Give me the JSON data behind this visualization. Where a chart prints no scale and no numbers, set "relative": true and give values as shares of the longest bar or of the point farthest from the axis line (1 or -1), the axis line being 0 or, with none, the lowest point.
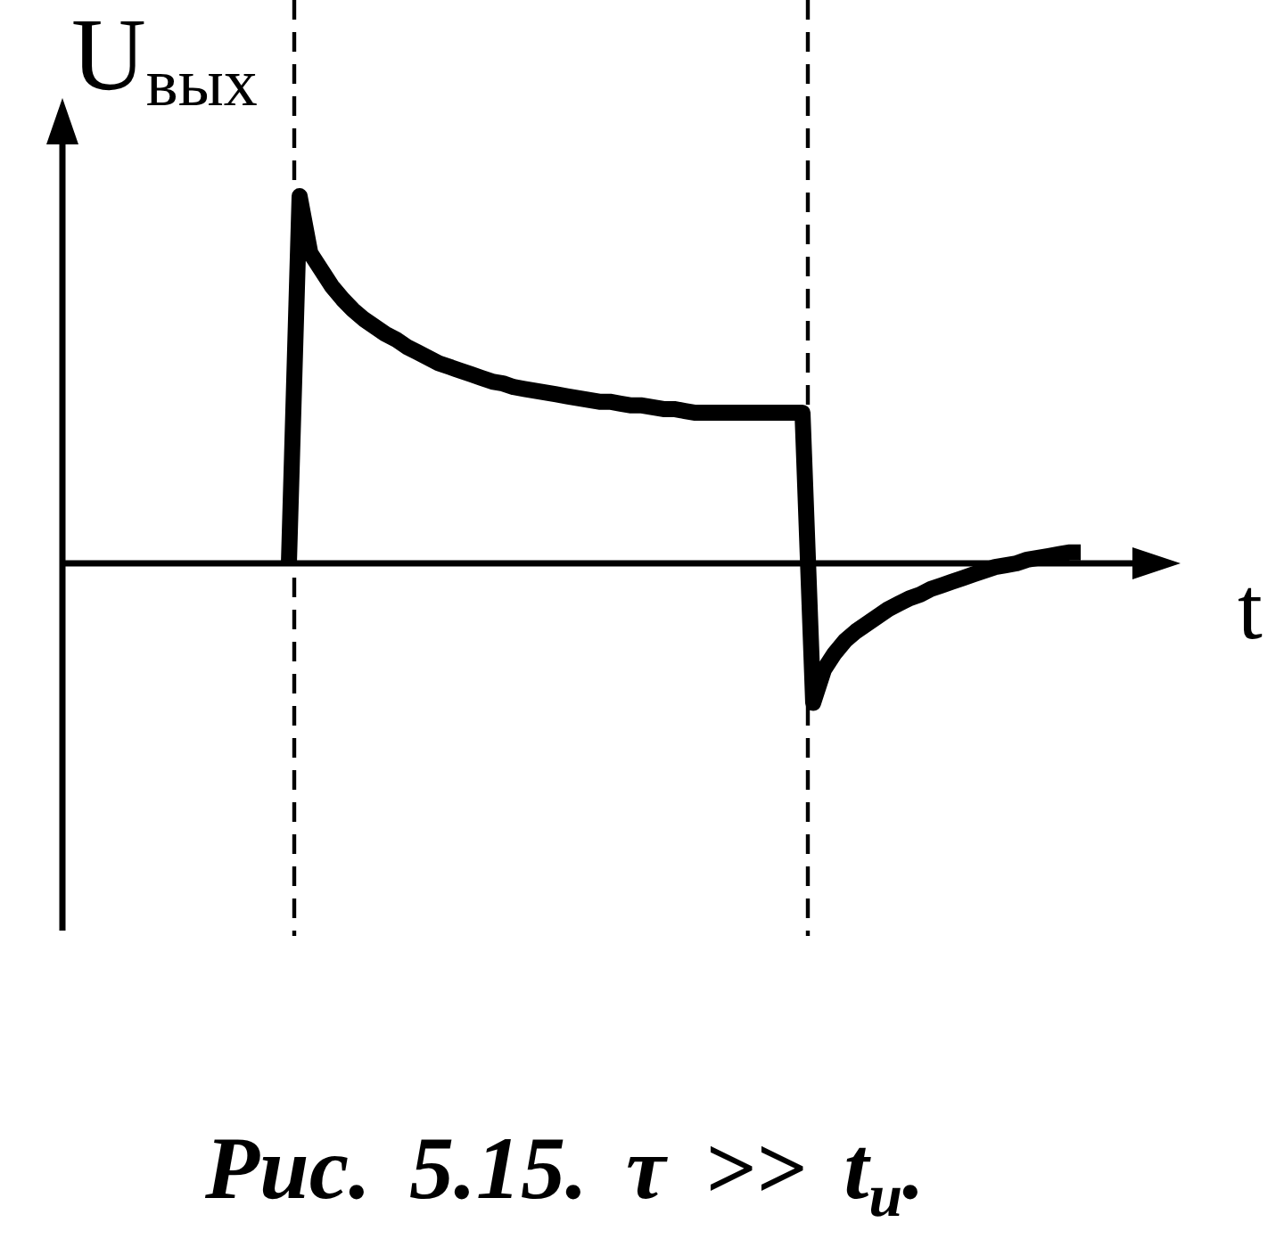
{
  "chart_data": {
    "type": "line",
    "relative": true,
    "xlabel": "t",
    "ylabel": "U$_{вых}$",
    "annotations": [
      "Рис. 5.15. τ >> t$_{и}$."
    ],
    "categories": [
      null,
      null,
      null,
      null,
      null,
      null,
      null,
      null,
      null,
      null,
      null,
      null,
      null,
      null,
      null,
      null,
      null,
      null,
      null,
      null,
      null,
      null,
      null,
      null,
      null,
      null,
      null,
      null,
      null,
      null,
      null,
      null,
      null,
      null,
      null,
      null,
      null,
      null,
      null,
      null,
      null,
      null,
      null,
      null,
      null,
      null,
      null,
      null,
      null,
      null,
      null,
      null,
      null,
      null,
      null,
      null,
      null,
      null,
      null,
      null,
      null,
      null,
      null,
      null,
      null,
      null,
      null,
      null,
      null,
      null,
      null,
      null,
      null,
      null,
      null
    ],
    "series": [
      {
        "color": "#000000",
        "values": [
          0,
          1,
          0.845,
          0.8,
          0.755,
          0.72,
          0.69,
          0.665,
          0.645,
          0.625,
          0.61,
          0.59,
          0.575,
          0.56,
          0.545,
          0.535,
          0.525,
          0.515,
          0.505,
          0.495,
          0.49,
          0.48,
          0.475,
          0.47,
          0.465,
          0.46,
          0.455,
          0.45,
          0.445,
          0.44,
          0.44,
          0.435,
          0.43,
          0.43,
          0.425,
          0.42,
          0.42,
          0.415,
          0.41,
          0.41,
          0.41,
          0.41,
          0.41,
          0.41,
          0.41,
          0.41,
          0.41,
          0.41,
          0.41,
          -0.38,
          -0.29,
          -0.245,
          -0.21,
          -0.185,
          -0.165,
          -0.145,
          -0.125,
          -0.11,
          -0.095,
          -0.085,
          -0.07,
          -0.06,
          -0.05,
          -0.04,
          -0.03,
          -0.02,
          -0.01,
          -0.005,
          0,
          0.01,
          0.015,
          0.02,
          0.025,
          0.03,
          0.03
        ]
      }
    ]
  }
}
